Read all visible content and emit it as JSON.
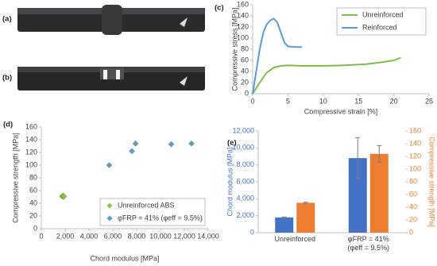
{
  "panels": {
    "labels": [
      "(a)",
      "(b)"
    ]
  },
  "chart_data": [
    {
      "type": "line",
      "label": "(c)",
      "xlabel": "Compressive strain [%]",
      "ylabel": "Compressive stress [MPa]",
      "xlim": [
        0,
        25
      ],
      "xticks": [
        0,
        5,
        10,
        15,
        20,
        25
      ],
      "ylim": [
        0,
        160
      ],
      "yticks": [
        0,
        20,
        40,
        60,
        80,
        100,
        120,
        140,
        160
      ],
      "legend": "upper right",
      "series": [
        {
          "name": "Unreinforced",
          "color": "#7cbf4a",
          "x": [
            0,
            1,
            2,
            3,
            4,
            5,
            7,
            10,
            13,
            16,
            18,
            20,
            21
          ],
          "values": [
            0,
            20,
            38,
            47,
            50,
            51,
            50,
            50,
            51,
            53,
            56,
            60,
            65
          ]
        },
        {
          "name": "Reinforced",
          "color": "#5b9bd5",
          "x": [
            0,
            0.5,
            1,
            1.5,
            2,
            2.5,
            3,
            3.5,
            4,
            4.5,
            5,
            6,
            7
          ],
          "values": [
            0,
            40,
            80,
            110,
            125,
            132,
            135,
            128,
            110,
            92,
            85,
            84,
            84
          ]
        }
      ]
    },
    {
      "type": "scatter",
      "label": "(d)",
      "xlabel": "Chord modulus  [MPa]",
      "ylabel": "Compressive strength [MPa]",
      "xlim": [
        0,
        14000
      ],
      "xticks": [
        0,
        {
          "value": 2000,
          "label": "2,000"
        },
        {
          "value": 4000,
          "label": "4,000"
        },
        {
          "value": 6000,
          "label": "6,000"
        },
        {
          "value": 8000,
          "label": "8,000"
        },
        {
          "value": 10000,
          "label": "10,000"
        },
        {
          "value": 12000,
          "label": "12,000"
        },
        {
          "value": 14000,
          "label": "14,000"
        }
      ],
      "ylim": [
        0,
        160
      ],
      "yticks": [
        0,
        20,
        40,
        60,
        80,
        100,
        120,
        140,
        160
      ],
      "legend": "lower right",
      "series": [
        {
          "name": "Unreinforced ABS",
          "color": "#8dc63f",
          "x": [
            1750,
            1800,
            1850,
            1900
          ],
          "values": [
            51,
            52,
            50,
            51
          ]
        },
        {
          "name": "φFRP = 41% (φeff = 9.5%)",
          "color": "#5b9bd5",
          "x": [
            5700,
            7600,
            7900,
            10900,
            12600
          ],
          "values": [
            100,
            122,
            134,
            133,
            134
          ]
        }
      ]
    },
    {
      "type": "bar",
      "label": "(e)",
      "ylabel": "Chord modulus [MPa]",
      "y2label": "Compressive strength [MPa]",
      "categories": [
        "Unreinforced",
        "φFRP = 41% (φeff = 9.5%)"
      ],
      "ylim": [
        0,
        12000
      ],
      "yticks": [
        0,
        {
          "value": 2000,
          "label": "2,000"
        },
        {
          "value": 4000,
          "label": "4,000"
        },
        {
          "value": 6000,
          "label": "6,000"
        },
        {
          "value": 8000,
          "label": "8,000"
        },
        {
          "value": 10000,
          "label": "10,000"
        },
        {
          "value": 12000,
          "label": "12,000"
        }
      ],
      "y2lim": [
        0,
        160
      ],
      "y2ticks": [
        0,
        20,
        40,
        60,
        80,
        100,
        120,
        140,
        160
      ],
      "series": [
        {
          "color": "#4472c4",
          "values": [
            1800,
            8800
          ],
          "errors": [
            50,
            2400
          ]
        },
        {
          "color": "#ed7d31",
          "axis": "y2",
          "values": [
            47,
            124
          ],
          "errors": [
            1,
            13
          ]
        }
      ]
    }
  ]
}
